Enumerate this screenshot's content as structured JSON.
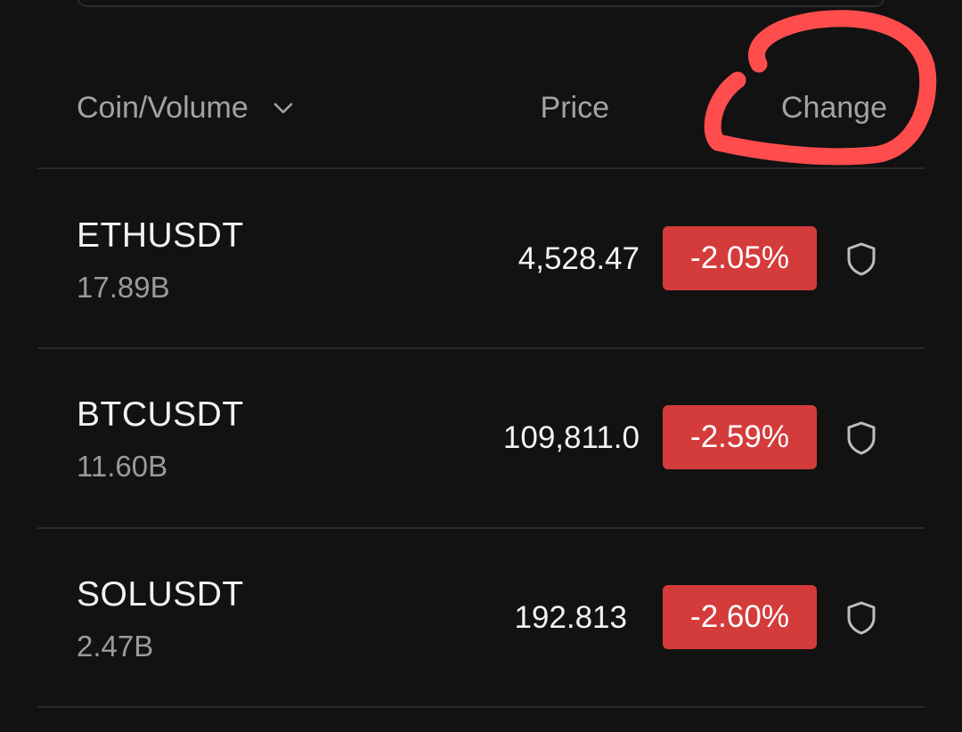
{
  "header": {
    "coin_volume_label": "Coin/Volume",
    "price_label": "Price",
    "change_label": "Change"
  },
  "rows": [
    {
      "symbol": "ETHUSDT",
      "volume": "17.89B",
      "price": "4,528.47",
      "change": "-2.05%"
    },
    {
      "symbol": "BTCUSDT",
      "volume": "11.60B",
      "price": "109,811.0",
      "change": "-2.59%"
    },
    {
      "symbol": "SOLUSDT",
      "volume": "2.47B",
      "price": "192.813",
      "change": "-2.60%"
    }
  ],
  "colors": {
    "background": "#121212",
    "negative_badge": "#d43b3b",
    "annotation": "#ff4d4d"
  },
  "icons": [
    "chevron-down-icon",
    "shield-icon"
  ]
}
